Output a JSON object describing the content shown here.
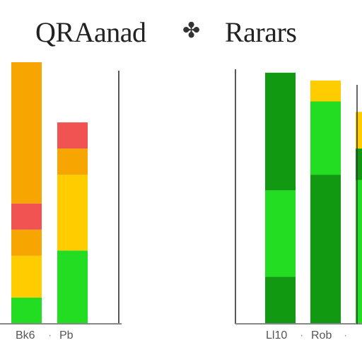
{
  "header": {
    "title_left": "QRAanad",
    "mark": "✤",
    "title_right": "Rarars"
  },
  "chart_data": [
    {
      "type": "bar",
      "stacked": true,
      "categories": [
        "Bk6",
        "Pb"
      ],
      "separator": "·",
      "ylim": [
        0,
        100
      ],
      "segments": [
        {
          "category": "Bk6",
          "values": [
            10,
            16,
            10,
            10,
            54
          ],
          "colors": [
            "#22dd22",
            "#ffcc00",
            "#f7a500",
            "#f15353",
            "#f7a500"
          ]
        },
        {
          "category": "Pb",
          "values": [
            28,
            29,
            10,
            10
          ],
          "colors": [
            "#22dd22",
            "#ffcc00",
            "#f7a500",
            "#f15353"
          ]
        }
      ]
    },
    {
      "type": "bar",
      "stacked": true,
      "categories": [
        "Ll10",
        "Rob",
        ""
      ],
      "separator": "·",
      "ylim": [
        0,
        100
      ],
      "segments": [
        {
          "category": "Ll10",
          "values": [
            18,
            33,
            45
          ],
          "colors": [
            "#119911",
            "#22dd22",
            "#119911"
          ]
        },
        {
          "category": "Rob",
          "values": [
            57,
            28,
            8
          ],
          "colors": [
            "#119911",
            "#22dd22",
            "#ffcc00"
          ]
        },
        {
          "category": "",
          "values": [
            55,
            12,
            14
          ],
          "colors": [
            "#22dd22",
            "#119911",
            "#ffcc00"
          ]
        }
      ]
    }
  ]
}
